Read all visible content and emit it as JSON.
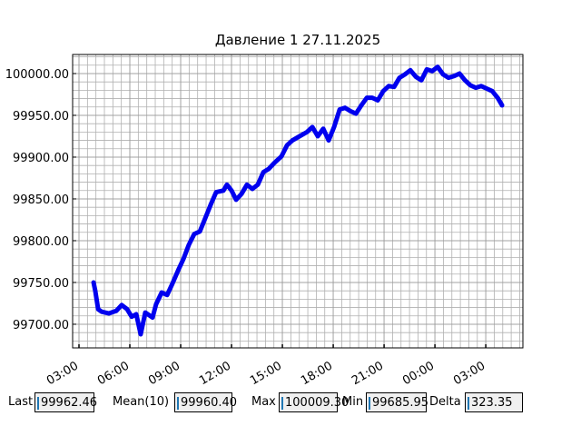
{
  "chart_data": {
    "type": "line",
    "title": "Давление 1 27.11.2025",
    "color": "#0000ee",
    "x": [
      3.86,
      3.96,
      4.13,
      4.34,
      4.77,
      5.2,
      5.52,
      5.84,
      6.11,
      6.38,
      6.64,
      6.91,
      7.34,
      7.55,
      7.88,
      8.2,
      8.52,
      8.84,
      9.16,
      9.48,
      9.8,
      10.13,
      10.45,
      10.77,
      11.09,
      11.52,
      11.73,
      12.0,
      12.27,
      12.59,
      12.91,
      13.23,
      13.55,
      13.88,
      14.2,
      14.52,
      14.95,
      15.27,
      15.59,
      16.02,
      16.45,
      16.77,
      17.09,
      17.41,
      17.73,
      18.05,
      18.38,
      18.7,
      19.02,
      19.34,
      19.66,
      19.98,
      20.3,
      20.63,
      20.95,
      21.27,
      21.59,
      21.91,
      22.23,
      22.55,
      22.88,
      23.2,
      23.52,
      23.84,
      24.16,
      24.48,
      24.8,
      25.13,
      25.45,
      25.77,
      26.09,
      26.41,
      26.73,
      27.05,
      27.38,
      27.7,
      27.96
    ],
    "values": [
      99750,
      99740,
      99718,
      99715,
      99713,
      99716,
      99723,
      99718,
      99709,
      99712,
      99688,
      99714,
      99708,
      99724,
      99738,
      99735,
      99749,
      99764,
      99778,
      99795,
      99808,
      99811,
      99827,
      99843,
      99858,
      99860,
      99867,
      99860,
      99849,
      99856,
      99867,
      99862,
      99867,
      99882,
      99886,
      99893,
      99901,
      99914,
      99920,
      99925,
      99930,
      99936,
      99925,
      99934,
      99920,
      99936,
      99957,
      99959,
      99955,
      99952,
      99962,
      99971,
      99971,
      99968,
      99979,
      99985,
      99984,
      99995,
      99999,
      100004,
      99996,
      99992,
      100005,
      100003,
      100008,
      99999,
      99995,
      99997,
      100000,
      99992,
      99986,
      99983,
      99985,
      99982,
      99979,
      99971,
      99962
    ],
    "xlim": [
      2.625,
      29.19
    ],
    "ylim": [
      99671.7,
      100022.8
    ],
    "xticks": [
      {
        "value": 3,
        "label": "03:00"
      },
      {
        "value": 6,
        "label": "06:00"
      },
      {
        "value": 9,
        "label": "09:00"
      },
      {
        "value": 12,
        "label": "12:00"
      },
      {
        "value": 15,
        "label": "15:00"
      },
      {
        "value": 18,
        "label": "18:00"
      },
      {
        "value": 21,
        "label": "21:00"
      },
      {
        "value": 24,
        "label": "00:00"
      },
      {
        "value": 27,
        "label": "03:00"
      }
    ],
    "yticks": [
      {
        "value": 99700,
        "label": "99700.00"
      },
      {
        "value": 99750,
        "label": "99750.00"
      },
      {
        "value": 99800,
        "label": "99800.00"
      },
      {
        "value": 99850,
        "label": "99850.00"
      },
      {
        "value": 99900,
        "label": "99900.00"
      },
      {
        "value": 99950,
        "label": "99950.00"
      },
      {
        "value": 100000,
        "label": "100000.00"
      }
    ],
    "grid": true,
    "minor_xstep": 0.5,
    "minor_ystep": 10
  },
  "widgets": [
    {
      "label": "Last",
      "value": "99962.46"
    },
    {
      "label": "Mean(10)",
      "value": "99960.40"
    },
    {
      "label": "Max",
      "value": "100009.30"
    },
    {
      "label": "Min",
      "value": "99685.95"
    },
    {
      "label": "Delta",
      "value": "323.35"
    }
  ]
}
